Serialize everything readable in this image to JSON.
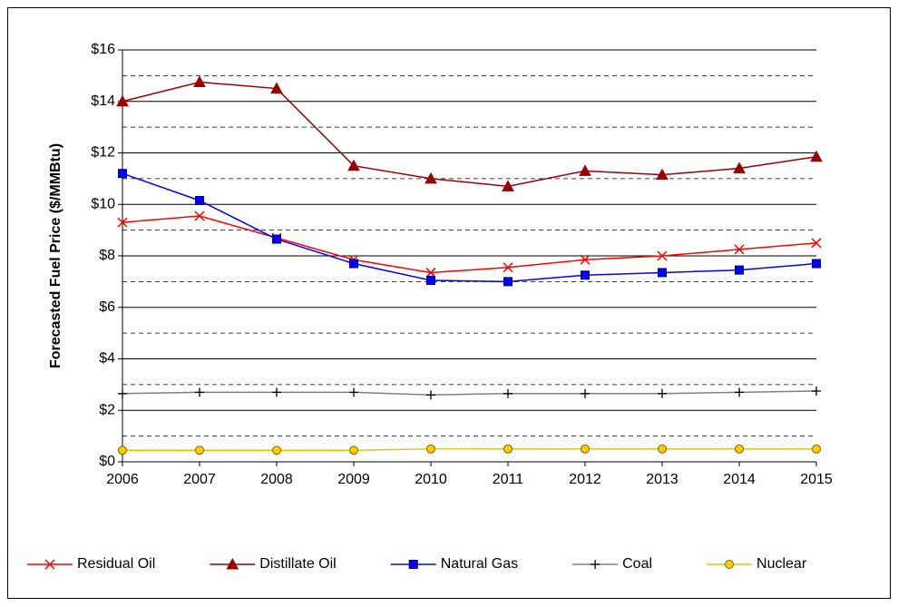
{
  "chart_data": {
    "type": "line",
    "y_label": "Forecasted Fuel Price ($/MMBtu)",
    "x": [
      2006,
      2007,
      2008,
      2009,
      2010,
      2011,
      2012,
      2013,
      2014,
      2015
    ],
    "xlim": [
      2006,
      2015
    ],
    "xticks": [
      2006,
      2007,
      2008,
      2009,
      2010,
      2011,
      2012,
      2013,
      2014,
      2015
    ],
    "ylim": [
      0,
      16
    ],
    "yticks": [
      {
        "value": 0,
        "label": "$0"
      },
      {
        "value": 2,
        "label": "$2"
      },
      {
        "value": 4,
        "label": "$4"
      },
      {
        "value": 6,
        "label": "$6"
      },
      {
        "value": 8,
        "label": "$8"
      },
      {
        "value": 10,
        "label": "$10"
      },
      {
        "value": 12,
        "label": "$12"
      },
      {
        "value": 14,
        "label": "$14"
      },
      {
        "value": 16,
        "label": "$16"
      }
    ],
    "minor_yticks": [
      1,
      3,
      5,
      7,
      9,
      11,
      13,
      15
    ],
    "grid": true,
    "legend": "bottom",
    "series": [
      {
        "name": "Residual Oil",
        "color": "#ff0000",
        "marker": "x",
        "values": [
          9.3,
          9.55,
          8.7,
          7.85,
          7.35,
          7.55,
          7.85,
          8.0,
          8.25,
          8.5
        ]
      },
      {
        "name": "Distillate Oil",
        "color": "#990000",
        "marker": "triangle",
        "values": [
          14.0,
          14.75,
          14.5,
          11.5,
          11.0,
          10.7,
          11.3,
          11.15,
          11.4,
          11.85
        ]
      },
      {
        "name": "Natural Gas",
        "color": "#0000ff",
        "marker": "square",
        "values": [
          11.2,
          10.15,
          8.65,
          7.7,
          7.05,
          7.0,
          7.25,
          7.35,
          7.45,
          7.7
        ]
      },
      {
        "name": "Coal",
        "color": "#808080",
        "marker": "plus",
        "values": [
          2.65,
          2.7,
          2.7,
          2.7,
          2.6,
          2.65,
          2.65,
          2.65,
          2.7,
          2.75
        ]
      },
      {
        "name": "Nuclear",
        "color": "#e6c200",
        "marker": "circle",
        "values": [
          0.45,
          0.45,
          0.45,
          0.45,
          0.5,
          0.5,
          0.5,
          0.5,
          0.5,
          0.5
        ]
      }
    ]
  }
}
